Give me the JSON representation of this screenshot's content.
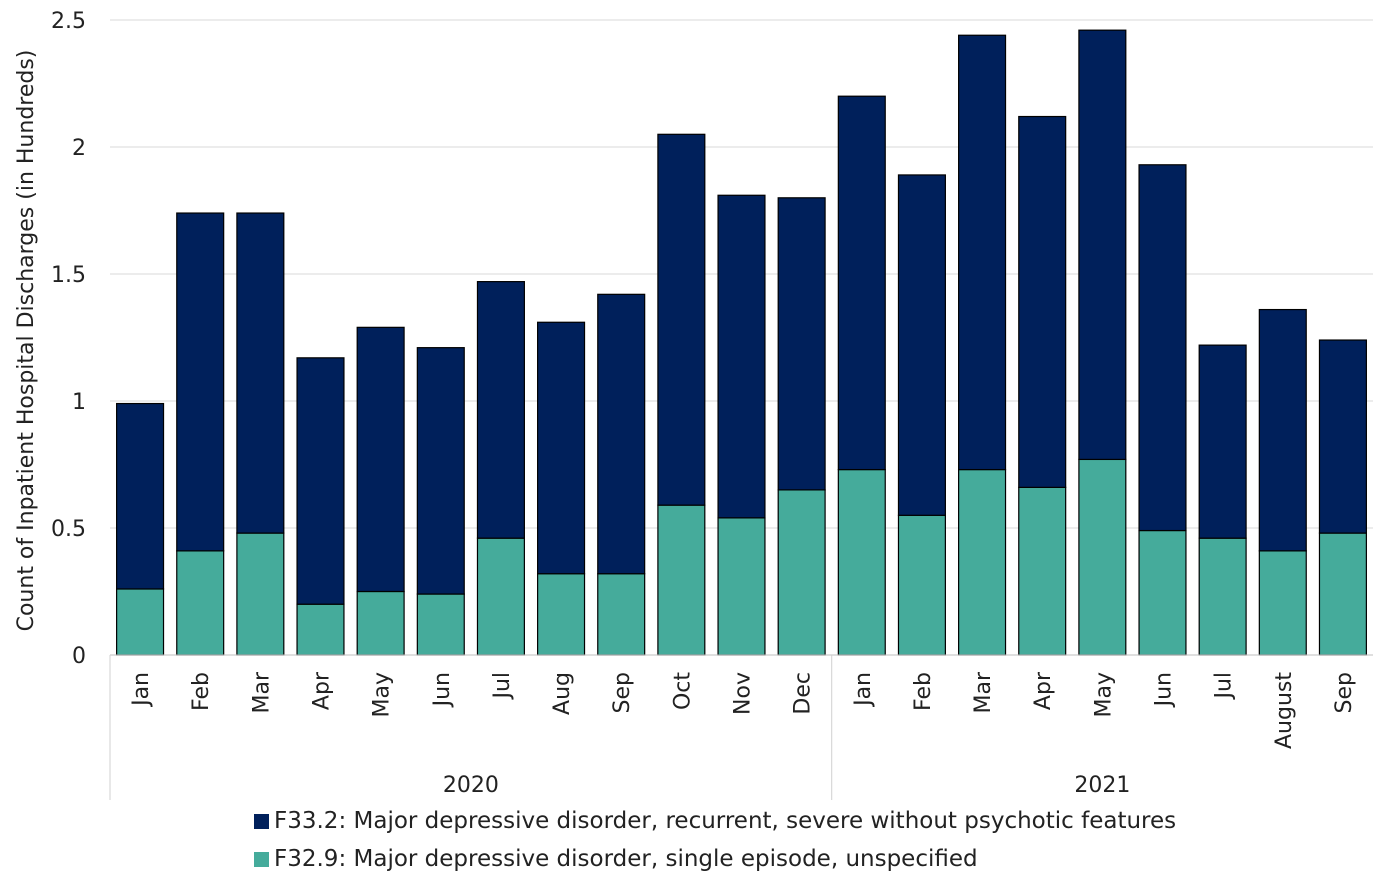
{
  "chart_data": {
    "type": "bar",
    "stacked": true,
    "ylabel": "Count of Inpatient Hospital Discharges (in Hundreds)",
    "xlabel": "",
    "ylim": [
      0,
      2.5
    ],
    "yticks": [
      "0",
      "0.5",
      "1",
      "1.5",
      "2",
      "2.5"
    ],
    "grid": true,
    "legend_position": "bottom",
    "categories": [
      "Jan",
      "Feb",
      "Mar",
      "Apr",
      "May",
      "Jun",
      "Jul",
      "Aug",
      "Sep",
      "Oct",
      "Nov",
      "Dec",
      "Jan",
      "Feb",
      "Mar",
      "Apr",
      "May",
      "Jun",
      "Jul",
      "August",
      "Sep"
    ],
    "groups": [
      {
        "label": "2020",
        "count": 12
      },
      {
        "label": "2021",
        "count": 9
      }
    ],
    "series": [
      {
        "name": "F32.9: Major depressive disorder, single episode, unspecified",
        "color": "#45ab9b",
        "values": [
          0.26,
          0.41,
          0.48,
          0.2,
          0.25,
          0.24,
          0.46,
          0.32,
          0.32,
          0.59,
          0.54,
          0.65,
          0.73,
          0.55,
          0.73,
          0.66,
          0.77,
          0.49,
          0.46,
          0.41,
          0.48
        ]
      },
      {
        "name": "F33.2: Major depressive disorder, recurrent, severe without psychotic features",
        "color": "#00205b",
        "values": [
          0.73,
          1.33,
          1.26,
          0.97,
          1.04,
          0.97,
          1.01,
          0.99,
          1.1,
          1.46,
          1.27,
          1.15,
          1.47,
          1.34,
          1.71,
          1.46,
          1.69,
          1.44,
          0.76,
          0.95,
          0.76
        ]
      }
    ]
  },
  "legend": {
    "item1": "F33.2: Major depressive disorder, recurrent, severe without psychotic features",
    "item2": "F32.9: Major depressive disorder, single episode, unspecified"
  }
}
